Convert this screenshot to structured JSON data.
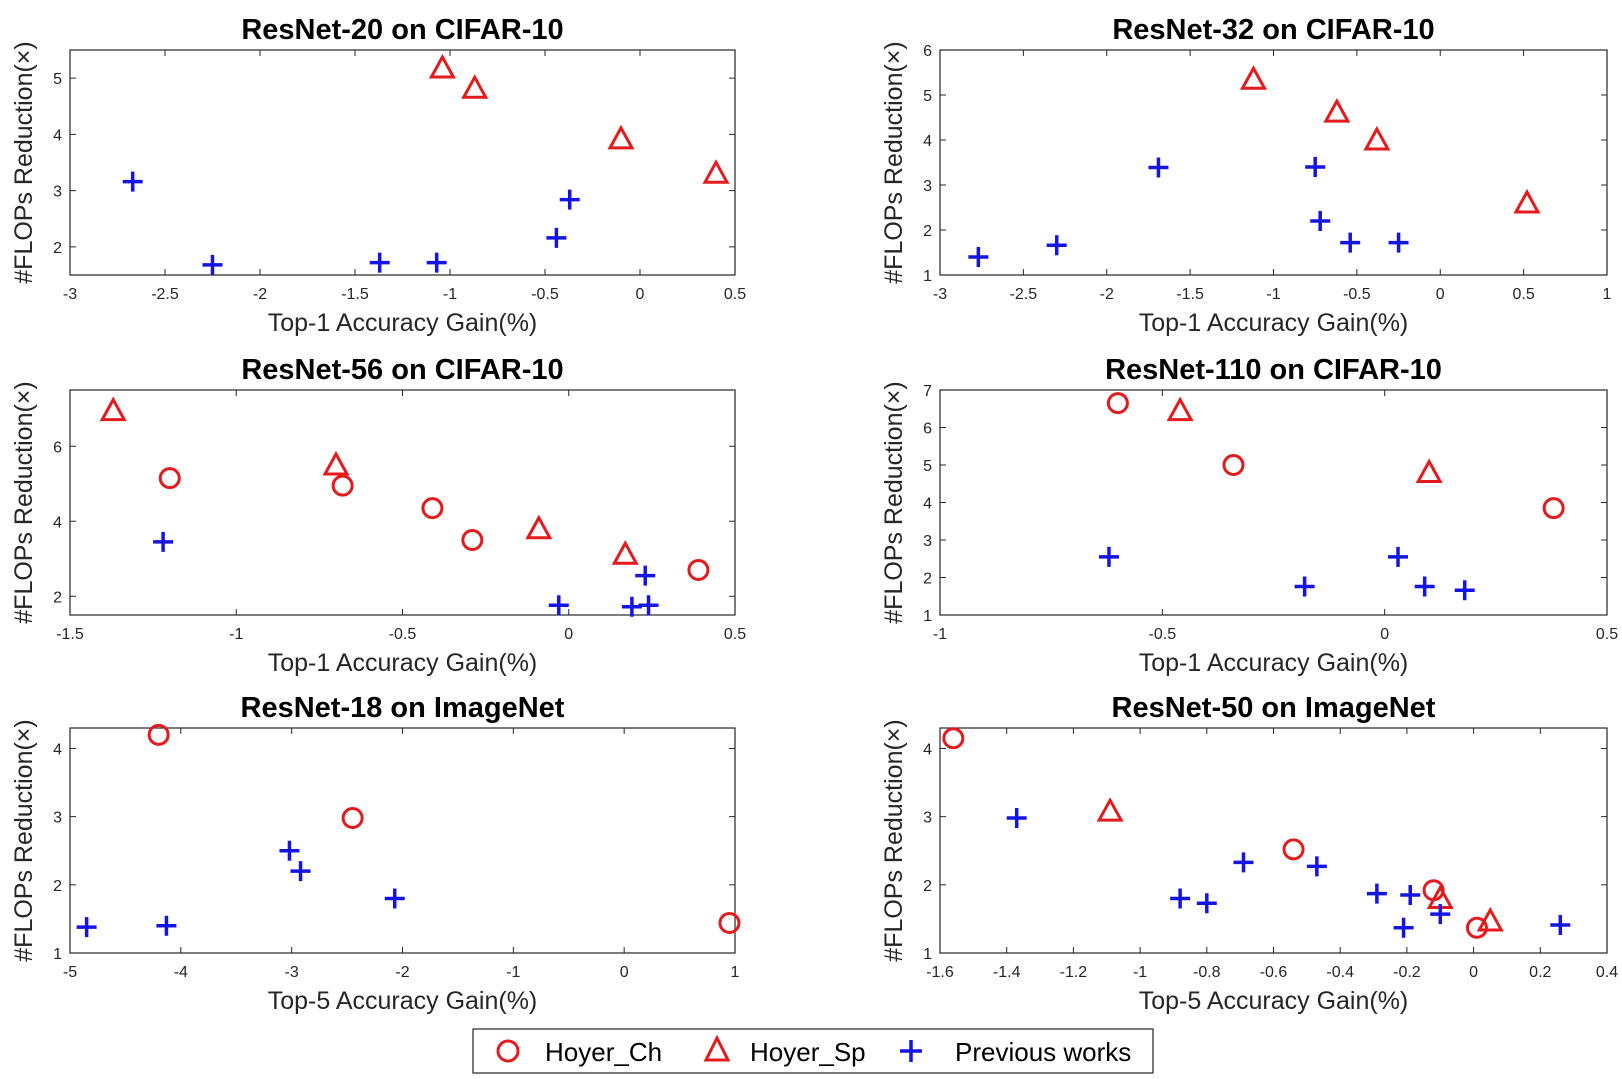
{
  "colors": {
    "hoyer": "#e41a1c",
    "previous": "#1414e6",
    "axis": "#262626"
  },
  "legend": {
    "items": [
      {
        "label": "Hoyer_Ch",
        "marker": "circle",
        "color": "#e41a1c"
      },
      {
        "label": "Hoyer_Sp",
        "marker": "triangle",
        "color": "#e41a1c"
      },
      {
        "label": "Previous works",
        "marker": "plus",
        "color": "#1414e6"
      }
    ]
  },
  "chart_data": [
    {
      "type": "scatter",
      "title": "ResNet-20 on CIFAR-10",
      "xlabel": "Top-1 Accuracy Gain(%)",
      "ylabel": "#FLOPs Reduction(×)",
      "xlim": [
        -3,
        0.5
      ],
      "ylim": [
        1.5,
        5.5
      ],
      "xticks": [
        -3,
        -2.5,
        -2,
        -1.5,
        -1,
        -0.5,
        0,
        0.5
      ],
      "xtick_labels": [
        "-3",
        "-2.5",
        "-2",
        "-1.5",
        "-1",
        "-0.5",
        "0",
        "0.5"
      ],
      "yticks": [
        2,
        3,
        4,
        5
      ],
      "ytick_labels": [
        "2",
        "3",
        "4",
        "5"
      ],
      "series": [
        {
          "name": "Hoyer_Ch",
          "marker": "circle",
          "points": []
        },
        {
          "name": "Hoyer_Sp",
          "marker": "triangle",
          "points": [
            [
              -1.04,
              5.18
            ],
            [
              -0.87,
              4.82
            ],
            [
              -0.1,
              3.92
            ],
            [
              0.4,
              3.31
            ]
          ]
        },
        {
          "name": "Previous works",
          "marker": "plus",
          "points": [
            [
              -2.67,
              3.16
            ],
            [
              -2.25,
              1.68
            ],
            [
              -1.37,
              1.72
            ],
            [
              -1.07,
              1.72
            ],
            [
              -0.44,
              2.16
            ],
            [
              -0.37,
              2.84
            ]
          ]
        }
      ]
    },
    {
      "type": "scatter",
      "title": "ResNet-32 on CIFAR-10",
      "xlabel": "Top-1 Accuracy Gain(%)",
      "ylabel": "#FLOPs Reduction(×)",
      "xlim": [
        -3,
        1
      ],
      "ylim": [
        1,
        6
      ],
      "xticks": [
        -3,
        -2.5,
        -2,
        -1.5,
        -1,
        -0.5,
        0,
        0.5,
        1
      ],
      "xtick_labels": [
        "-3",
        "-2.5",
        "-2",
        "-1.5",
        "-1",
        "-0.5",
        "0",
        "0.5",
        "1"
      ],
      "yticks": [
        1,
        2,
        3,
        4,
        5,
        6
      ],
      "ytick_labels": [
        "1",
        "2",
        "3",
        "4",
        "5",
        "6"
      ],
      "series": [
        {
          "name": "Hoyer_Ch",
          "marker": "circle",
          "points": []
        },
        {
          "name": "Hoyer_Sp",
          "marker": "triangle",
          "points": [
            [
              -1.12,
              5.35
            ],
            [
              -0.62,
              4.62
            ],
            [
              -0.38,
              4.0
            ],
            [
              0.52,
              2.6
            ]
          ]
        },
        {
          "name": "Previous works",
          "marker": "plus",
          "points": [
            [
              -2.77,
              1.4
            ],
            [
              -2.3,
              1.66
            ],
            [
              -1.69,
              3.39
            ],
            [
              -0.75,
              3.4
            ],
            [
              -0.72,
              2.2
            ],
            [
              -0.54,
              1.72
            ],
            [
              -0.25,
              1.72
            ]
          ]
        }
      ]
    },
    {
      "type": "scatter",
      "title": "ResNet-56 on CIFAR-10",
      "xlabel": "Top-1 Accuracy Gain(%)",
      "ylabel": "#FLOPs Reduction(×)",
      "xlim": [
        -1.5,
        0.5
      ],
      "ylim": [
        1.5,
        7.5
      ],
      "xticks": [
        -1.5,
        -1,
        -0.5,
        0,
        0.5
      ],
      "xtick_labels": [
        "-1.5",
        "-1",
        "-0.5",
        "0",
        "0.5"
      ],
      "yticks": [
        2,
        4,
        6
      ],
      "ytick_labels": [
        "2",
        "4",
        "6"
      ],
      "series": [
        {
          "name": "Hoyer_Ch",
          "marker": "circle",
          "points": [
            [
              -1.2,
              5.15
            ],
            [
              -0.68,
              4.95
            ],
            [
              -0.41,
              4.35
            ],
            [
              -0.29,
              3.5
            ],
            [
              0.39,
              2.7
            ]
          ]
        },
        {
          "name": "Hoyer_Sp",
          "marker": "triangle",
          "points": [
            [
              -1.37,
              6.95
            ],
            [
              -0.7,
              5.5
            ],
            [
              -0.09,
              3.8
            ],
            [
              0.17,
              3.12
            ]
          ]
        },
        {
          "name": "Previous works",
          "marker": "plus",
          "points": [
            [
              -1.22,
              3.45
            ],
            [
              -0.03,
              1.76
            ],
            [
              0.19,
              1.72
            ],
            [
              0.23,
              2.55
            ],
            [
              0.24,
              1.76
            ]
          ]
        }
      ]
    },
    {
      "type": "scatter",
      "title": "ResNet-110 on CIFAR-10",
      "xlabel": "Top-1 Accuracy Gain(%)",
      "ylabel": "#FLOPs Reduction(×)",
      "xlim": [
        -1,
        0.5
      ],
      "ylim": [
        1,
        7
      ],
      "xticks": [
        -1,
        -0.5,
        0,
        0.5
      ],
      "xtick_labels": [
        "-1",
        "-0.5",
        "0",
        "0.5"
      ],
      "yticks": [
        1,
        2,
        3,
        4,
        5,
        6,
        7
      ],
      "ytick_labels": [
        "1",
        "2",
        "3",
        "4",
        "5",
        "6",
        "7"
      ],
      "series": [
        {
          "name": "Hoyer_Ch",
          "marker": "circle",
          "points": [
            [
              -0.6,
              6.65
            ],
            [
              -0.34,
              5.0
            ],
            [
              0.38,
              3.85
            ]
          ]
        },
        {
          "name": "Hoyer_Sp",
          "marker": "triangle",
          "points": [
            [
              -0.46,
              6.45
            ],
            [
              0.1,
              4.8
            ]
          ]
        },
        {
          "name": "Previous works",
          "marker": "plus",
          "points": [
            [
              -0.62,
              2.55
            ],
            [
              -0.18,
              1.76
            ],
            [
              0.03,
              2.55
            ],
            [
              0.09,
              1.76
            ],
            [
              0.18,
              1.66
            ]
          ]
        }
      ]
    },
    {
      "type": "scatter",
      "title": "ResNet-18 on ImageNet",
      "xlabel": "Top-5 Accuracy Gain(%)",
      "ylabel": "#FLOPs Reduction(×)",
      "xlim": [
        -5,
        1
      ],
      "ylim": [
        1,
        4.3
      ],
      "xticks": [
        -5,
        -4,
        -3,
        -2,
        -1,
        0,
        1
      ],
      "xtick_labels": [
        "-5",
        "-4",
        "-3",
        "-2",
        "-1",
        "0",
        "1"
      ],
      "yticks": [
        1,
        2,
        3,
        4
      ],
      "ytick_labels": [
        "1",
        "2",
        "3",
        "4"
      ],
      "series": [
        {
          "name": "Hoyer_Ch",
          "marker": "circle",
          "points": [
            [
              -4.2,
              4.2
            ],
            [
              -2.45,
              2.98
            ],
            [
              0.95,
              1.44
            ]
          ]
        },
        {
          "name": "Hoyer_Sp",
          "marker": "triangle",
          "points": []
        },
        {
          "name": "Previous works",
          "marker": "plus",
          "points": [
            [
              -4.85,
              1.38
            ],
            [
              -4.13,
              1.4
            ],
            [
              -3.02,
              2.5
            ],
            [
              -2.92,
              2.2
            ],
            [
              -2.07,
              1.8
            ]
          ]
        }
      ]
    },
    {
      "type": "scatter",
      "title": "ResNet-50 on ImageNet",
      "xlabel": "Top-5 Accuracy Gain(%)",
      "ylabel": "#FLOPs Reduction(×)",
      "xlim": [
        -1.6,
        0.4
      ],
      "ylim": [
        1,
        4.3
      ],
      "xticks": [
        -1.6,
        -1.4,
        -1.2,
        -1,
        -0.8,
        -0.6,
        -0.4,
        -0.2,
        0,
        0.2,
        0.4
      ],
      "xtick_labels": [
        "-1.6",
        "-1.4",
        "-1.2",
        "-1",
        "-0.8",
        "-0.6",
        "-0.4",
        "-0.2",
        "0",
        "0.2",
        "0.4"
      ],
      "yticks": [
        1,
        2,
        3,
        4
      ],
      "ytick_labels": [
        "1",
        "2",
        "3",
        "4"
      ],
      "series": [
        {
          "name": "Hoyer_Ch",
          "marker": "circle",
          "points": [
            [
              -1.56,
              4.15
            ],
            [
              -0.54,
              2.52
            ],
            [
              -0.12,
              1.92
            ],
            [
              0.01,
              1.37
            ]
          ]
        },
        {
          "name": "Hoyer_Sp",
          "marker": "triangle",
          "points": [
            [
              -1.09,
              3.08
            ],
            [
              -0.1,
              1.8
            ],
            [
              0.05,
              1.47
            ]
          ]
        },
        {
          "name": "Previous works",
          "marker": "plus",
          "points": [
            [
              -1.37,
              2.98
            ],
            [
              -0.88,
              1.8
            ],
            [
              -0.8,
              1.73
            ],
            [
              -0.69,
              2.33
            ],
            [
              -0.47,
              2.27
            ],
            [
              -0.29,
              1.87
            ],
            [
              -0.19,
              1.85
            ],
            [
              -0.21,
              1.37
            ],
            [
              -0.1,
              1.57
            ],
            [
              0.26,
              1.41
            ]
          ]
        }
      ]
    }
  ]
}
